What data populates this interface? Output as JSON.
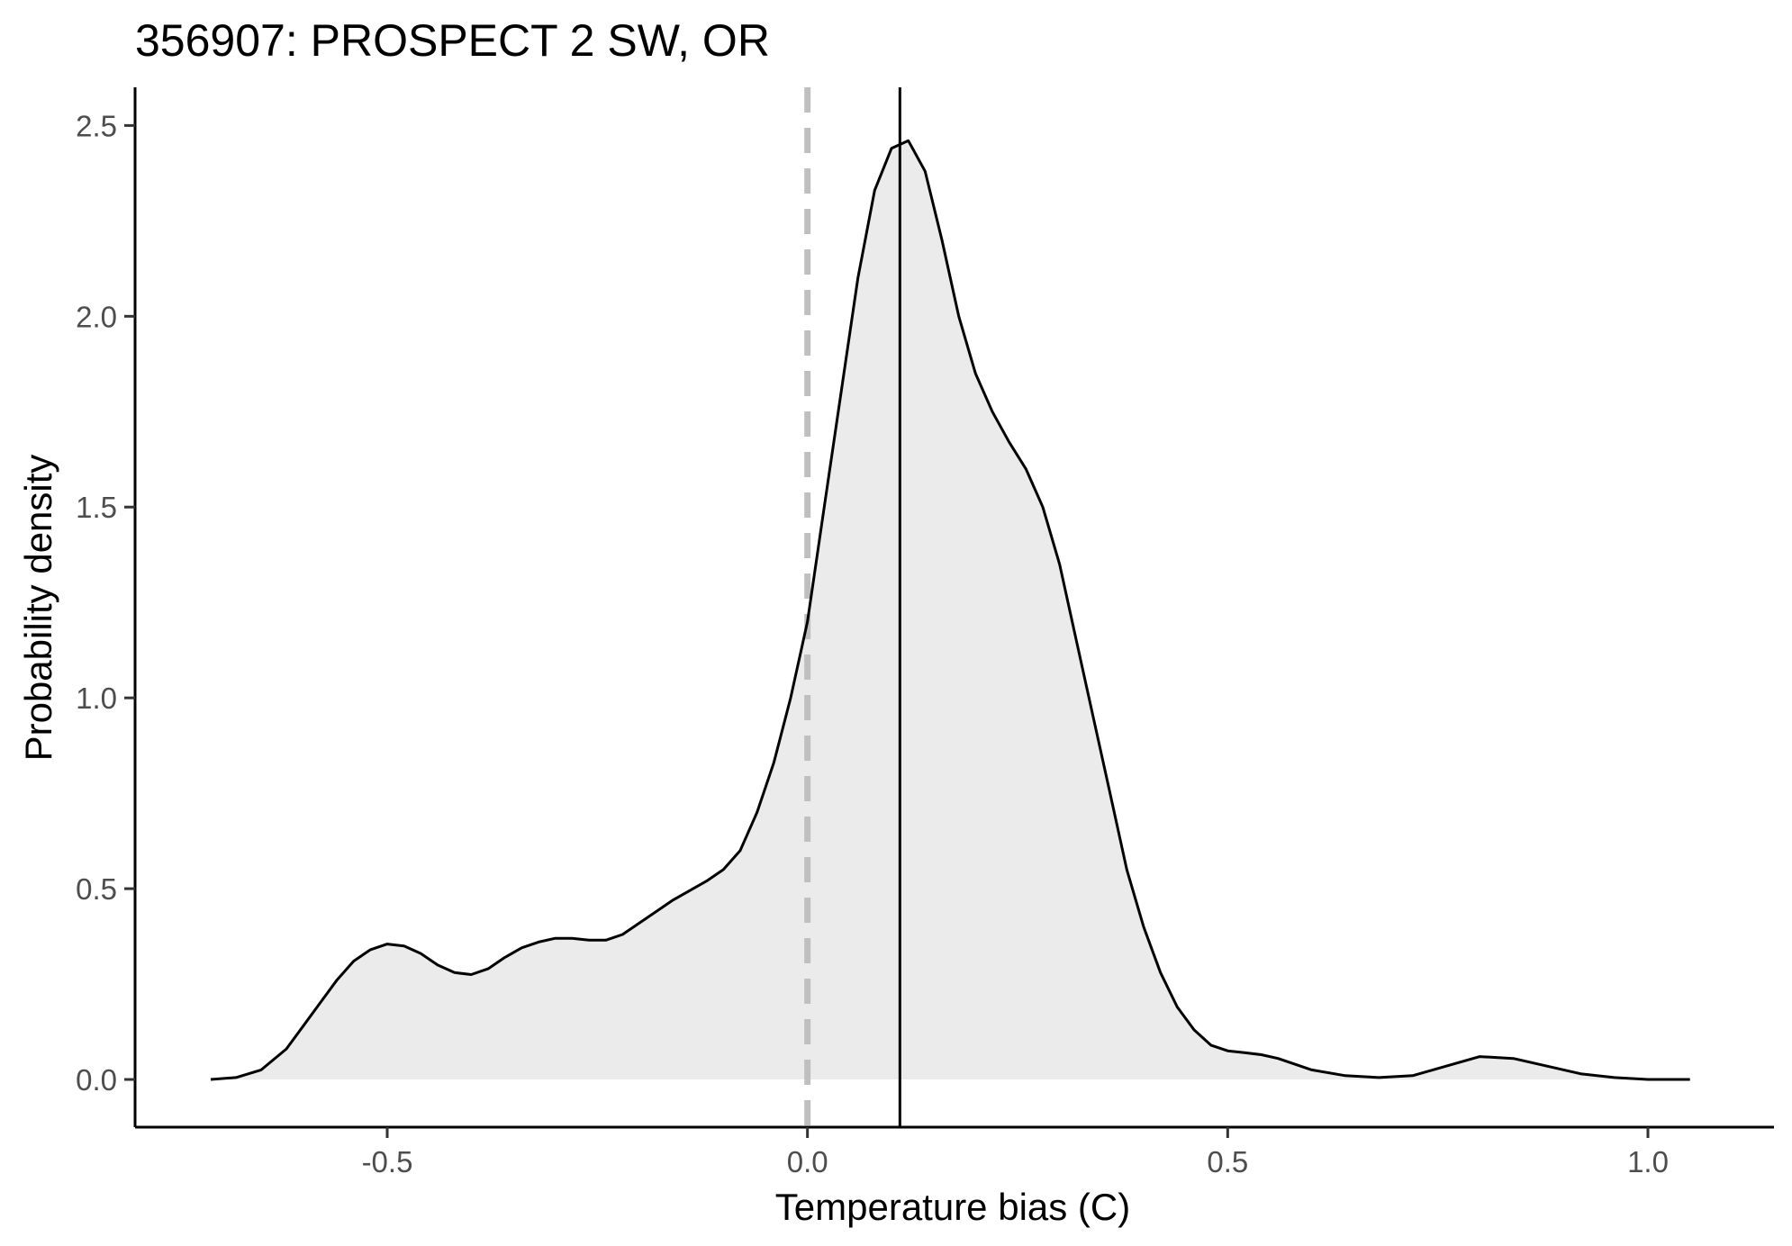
{
  "chart_data": {
    "type": "area",
    "title": "356907: PROSPECT 2 SW, OR",
    "xlabel": "Temperature bias (C)",
    "ylabel": "Probability density",
    "xlim": [
      -0.8,
      1.15
    ],
    "ylim": [
      -0.125,
      2.6
    ],
    "x_ticks": [
      -0.5,
      0.0,
      0.5,
      1.0
    ],
    "x_tick_labels": [
      "-0.5",
      "0.0",
      "0.5",
      "1.0"
    ],
    "y_ticks": [
      0.0,
      0.5,
      1.0,
      1.5,
      2.0,
      2.5
    ],
    "y_tick_labels": [
      "0.0",
      "0.5",
      "1.0",
      "1.5",
      "2.0",
      "2.5"
    ],
    "grid": false,
    "legend": "none",
    "reference_lines": [
      {
        "name": "zero",
        "x": 0.0,
        "style": "dashed",
        "color": "#bfbfbf"
      },
      {
        "name": "mean",
        "x": 0.11,
        "style": "solid",
        "color": "#000000"
      }
    ],
    "fill_color": "#ebebeb",
    "line_color": "#000000",
    "series": [
      {
        "x": [
          -0.71,
          -0.68,
          -0.65,
          -0.62,
          -0.6,
          -0.58,
          -0.56,
          -0.54,
          -0.52,
          -0.5,
          -0.48,
          -0.46,
          -0.44,
          -0.42,
          -0.4,
          -0.38,
          -0.36,
          -0.34,
          -0.32,
          -0.3,
          -0.28,
          -0.26,
          -0.24,
          -0.22,
          -0.2,
          -0.18,
          -0.16,
          -0.14,
          -0.12,
          -0.1,
          -0.08,
          -0.06,
          -0.04,
          -0.02,
          0.0,
          0.02,
          0.04,
          0.06,
          0.08,
          0.1,
          0.12,
          0.14,
          0.16,
          0.18,
          0.2,
          0.22,
          0.24,
          0.26,
          0.28,
          0.3,
          0.32,
          0.34,
          0.36,
          0.38,
          0.4,
          0.42,
          0.44,
          0.46,
          0.48,
          0.5,
          0.52,
          0.54,
          0.56,
          0.58,
          0.6,
          0.64,
          0.68,
          0.72,
          0.76,
          0.8,
          0.84,
          0.88,
          0.92,
          0.96,
          1.0,
          1.05
        ],
        "y": [
          0.0,
          0.005,
          0.025,
          0.08,
          0.14,
          0.2,
          0.26,
          0.31,
          0.34,
          0.355,
          0.35,
          0.33,
          0.3,
          0.28,
          0.275,
          0.29,
          0.32,
          0.345,
          0.36,
          0.37,
          0.37,
          0.365,
          0.365,
          0.38,
          0.41,
          0.44,
          0.47,
          0.495,
          0.52,
          0.55,
          0.6,
          0.7,
          0.83,
          1.0,
          1.2,
          1.5,
          1.8,
          2.1,
          2.33,
          2.44,
          2.46,
          2.38,
          2.2,
          2.0,
          1.85,
          1.75,
          1.67,
          1.6,
          1.5,
          1.35,
          1.15,
          0.95,
          0.75,
          0.55,
          0.4,
          0.28,
          0.19,
          0.13,
          0.09,
          0.075,
          0.07,
          0.065,
          0.055,
          0.04,
          0.025,
          0.01,
          0.005,
          0.01,
          0.035,
          0.06,
          0.055,
          0.035,
          0.015,
          0.005,
          0.0,
          0.0
        ]
      }
    ]
  }
}
